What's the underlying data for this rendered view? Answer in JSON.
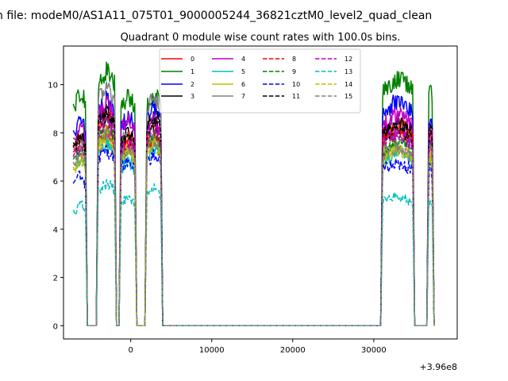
{
  "chart_data": {
    "type": "line",
    "suptitle": "n file: modeM0/AS1A11_075T01_9000005244_36821cztM0_level2_quad_clean",
    "title": "Quadrant 0 module wise count rates with 100.0s bins.",
    "xlabel": "",
    "ylabel": "",
    "x_offset_label": "+3.96e8",
    "xlim": [
      -8300,
      40300
    ],
    "ylim": [
      -0.55,
      11.6
    ],
    "xticks": [
      0,
      10000,
      20000,
      30000
    ],
    "xtick_labels": [
      "0",
      "10000",
      "20000",
      "30000"
    ],
    "yticks": [
      0,
      2,
      4,
      6,
      8,
      10
    ],
    "ytick_labels": [
      "0",
      "2",
      "4",
      "6",
      "8",
      "10"
    ],
    "grid": false,
    "legend_position": "upper center",
    "legend_columns": 4,
    "active_segments": [
      {
        "x_start": -6800,
        "x_end": -5600
      },
      {
        "x_start": -4000,
        "x_end": -2000
      },
      {
        "x_start": -1200,
        "x_end": 500
      },
      {
        "x_start": 2000,
        "x_end": 3700
      },
      {
        "x_start": 31100,
        "x_end": 34800
      },
      {
        "x_start": 36800,
        "x_end": 37200
      }
    ],
    "series": [
      {
        "name": "0",
        "color": "#ff0000",
        "dash": false,
        "levels": [
          7.5,
          7.6,
          7.2,
          7.4,
          7.9,
          7.0
        ]
      },
      {
        "name": "1",
        "color": "#008000",
        "dash": false,
        "levels": [
          9.2,
          10.0,
          9.0,
          9.1,
          9.7,
          9.4
        ]
      },
      {
        "name": "2",
        "color": "#0000ff",
        "dash": false,
        "levels": [
          8.1,
          8.9,
          8.2,
          8.6,
          8.8,
          8.2
        ]
      },
      {
        "name": "3",
        "color": "#000000",
        "dash": false,
        "levels": [
          7.6,
          8.4,
          7.6,
          8.3,
          8.0,
          8.0
        ]
      },
      {
        "name": "4",
        "color": "#bf00bf",
        "dash": false,
        "levels": [
          7.8,
          8.7,
          8.1,
          8.1,
          8.3,
          7.8
        ]
      },
      {
        "name": "5",
        "color": "#00bfbf",
        "dash": false,
        "levels": [
          6.5,
          7.2,
          6.5,
          7.0,
          6.8,
          6.6
        ]
      },
      {
        "name": "6",
        "color": "#bfbf00",
        "dash": false,
        "levels": [
          6.7,
          7.6,
          6.9,
          7.3,
          7.0,
          6.7
        ]
      },
      {
        "name": "7",
        "color": "#808080",
        "dash": false,
        "levels": [
          7.3,
          9.3,
          7.5,
          9.0,
          7.6,
          7.2
        ]
      },
      {
        "name": "8",
        "color": "#ff0000",
        "dash": true,
        "levels": [
          7.2,
          8.2,
          7.4,
          7.7,
          7.7,
          7.6
        ]
      },
      {
        "name": "9",
        "color": "#008000",
        "dash": true,
        "levels": [
          6.9,
          7.9,
          7.0,
          7.6,
          7.2,
          7.3
        ]
      },
      {
        "name": "10",
        "color": "#0000ff",
        "dash": true,
        "levels": [
          5.9,
          6.9,
          6.5,
          6.7,
          6.4,
          6.2
        ]
      },
      {
        "name": "11",
        "color": "#000000",
        "dash": true,
        "levels": [
          7.4,
          8.3,
          7.5,
          8.0,
          7.8,
          7.8
        ]
      },
      {
        "name": "12",
        "color": "#bf00bf",
        "dash": true,
        "levels": [
          7.0,
          8.0,
          7.2,
          7.8,
          7.5,
          7.4
        ]
      },
      {
        "name": "13",
        "color": "#00bfbf",
        "dash": true,
        "levels": [
          4.8,
          5.6,
          5.0,
          5.4,
          5.1,
          5.0
        ]
      },
      {
        "name": "14",
        "color": "#bfbf00",
        "dash": true,
        "levels": [
          6.6,
          7.4,
          6.8,
          7.1,
          6.9,
          6.7
        ]
      },
      {
        "name": "15",
        "color": "#808080",
        "dash": true,
        "levels": [
          6.8,
          7.6,
          6.9,
          7.3,
          7.0,
          6.9
        ]
      }
    ]
  }
}
